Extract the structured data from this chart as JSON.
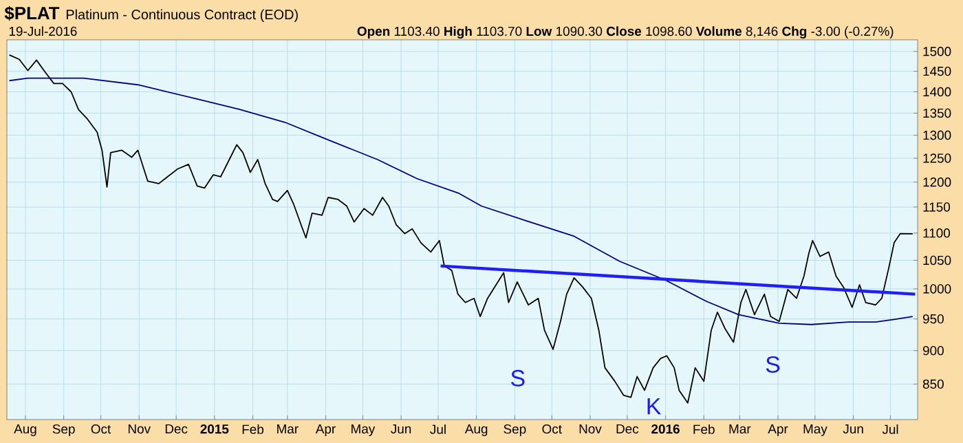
{
  "chart_data": {
    "type": "line",
    "title": "$PLAT",
    "subtitle": "Platinum - Continuous Contract (EOD)",
    "annotations": [
      "19-Jul-2016",
      "**Open** 1103.40 **High** 1103.70 **Low** 1090.30 **Close** 1098.60 **Volume** 8,146 **Chg** -3.00 (-0.27%)",
      "S",
      "K",
      "S"
    ],
    "series": [
      {
        "color": "#000000",
        "x": [
          "2014-07-19",
          "2014-07-27",
          "2014-08-03",
          "2014-08-10",
          "2014-08-16",
          "2014-08-24",
          "2014-08-31",
          "2014-09-07",
          "2014-09-13",
          "2014-09-20",
          "2014-09-28",
          "2014-10-02",
          "2014-10-06",
          "2014-10-09",
          "2014-10-18",
          "2014-10-26",
          "2014-10-31",
          "2014-11-08",
          "2014-11-17",
          "2014-11-22",
          "2014-12-02",
          "2014-12-11",
          "2014-12-18",
          "2014-12-24",
          "2014-12-31",
          "2015-01-06",
          "2015-01-13",
          "2015-01-19",
          "2015-01-24",
          "2015-01-30",
          "2015-02-05",
          "2015-02-11",
          "2015-02-17",
          "2015-02-21",
          "2015-03-01",
          "2015-03-06",
          "2015-03-12",
          "2015-03-16",
          "2015-03-21",
          "2015-03-29",
          "2015-04-03",
          "2015-04-11",
          "2015-04-18",
          "2015-04-24",
          "2015-05-02",
          "2015-05-09",
          "2015-05-17",
          "2015-05-22",
          "2015-05-28",
          "2015-06-04",
          "2015-06-10",
          "2015-06-17",
          "2015-06-25",
          "2015-07-02",
          "2015-07-06",
          "2015-07-12",
          "2015-07-17",
          "2015-07-23",
          "2015-07-30",
          "2015-08-04",
          "2015-08-10",
          "2015-08-23",
          "2015-08-27",
          "2015-09-03",
          "2015-09-12",
          "2015-09-20",
          "2015-09-25",
          "2015-10-02",
          "2015-10-08",
          "2015-10-13",
          "2015-10-19",
          "2015-10-26",
          "2015-11-02",
          "2015-11-08",
          "2015-11-13",
          "2015-11-21",
          "2015-11-28",
          "2015-12-04",
          "2015-12-09",
          "2015-12-15",
          "2015-12-22",
          "2015-12-28",
          "2016-01-02",
          "2016-01-08",
          "2016-01-12",
          "2016-01-19",
          "2016-01-25",
          "2016-02-01",
          "2016-02-07",
          "2016-02-12",
          "2016-02-18",
          "2016-02-25",
          "2016-03-02",
          "2016-03-06",
          "2016-03-13",
          "2016-03-21",
          "2016-03-26",
          "2016-04-02",
          "2016-04-09",
          "2016-04-16",
          "2016-04-22",
          "2016-04-26",
          "2016-04-29",
          "2016-05-05",
          "2016-05-12",
          "2016-05-18",
          "2016-05-24",
          "2016-05-31",
          "2016-06-06",
          "2016-06-11",
          "2016-06-19",
          "2016-06-24",
          "2016-06-30",
          "2016-07-04",
          "2016-07-09",
          "2016-07-19"
        ],
        "values": [
          1491,
          1480,
          1452,
          1478,
          1452,
          1420,
          1420,
          1400,
          1358,
          1337,
          1307,
          1267,
          1190,
          1262,
          1267,
          1252,
          1267,
          1202,
          1197,
          1207,
          1227,
          1237,
          1192,
          1188,
          1215,
          1211,
          1247,
          1279,
          1262,
          1220,
          1247,
          1197,
          1165,
          1161,
          1183,
          1156,
          1116,
          1091,
          1138,
          1134,
          1169,
          1165,
          1152,
          1121,
          1147,
          1134,
          1169,
          1152,
          1116,
          1099,
          1108,
          1082,
          1065,
          1086,
          1040,
          1032,
          991,
          977,
          984,
          954,
          984,
          1028,
          977,
          1012,
          973,
          984,
          932,
          902,
          946,
          991,
          1019,
          1003,
          984,
          932,
          874,
          854,
          834,
          831,
          861,
          841,
          874,
          888,
          892,
          874,
          841,
          823,
          874,
          854,
          932,
          961,
          935,
          913,
          977,
          999,
          957,
          991,
          954,
          946,
          999,
          984,
          1022,
          1063,
          1086,
          1057,
          1065,
          1022,
          1003,
          969,
          1007,
          977,
          973,
          984,
          1040,
          1082,
          1099,
          1098.6
        ]
      },
      {
        "color": "#000080",
        "x": [
          "2014-07-19",
          "2014-08-03",
          "2014-09-17",
          "2014-10-31",
          "2014-12-15",
          "2015-01-21",
          "2015-02-27",
          "2015-04-01",
          "2015-05-13",
          "2015-06-14",
          "2015-07-18",
          "2015-08-05",
          "2015-09-08",
          "2015-10-19",
          "2015-11-25",
          "2016-01-01",
          "2016-02-03",
          "2016-02-29",
          "2016-04-02",
          "2016-04-28",
          "2016-05-28",
          "2016-06-19",
          "2016-07-03",
          "2016-07-19"
        ],
        "values": [
          1427,
          1433,
          1433,
          1417,
          1385,
          1359,
          1329,
          1292,
          1247,
          1207,
          1177,
          1152,
          1125,
          1094,
          1048,
          1015,
          979,
          957,
          943,
          941,
          945,
          945,
          949,
          954
        ]
      },
      {
        "color": "#1e1eff",
        "x": [
          "2015-07-03",
          "2016-07-21"
        ],
        "values": [
          1040,
          991
        ]
      }
    ],
    "xlim": [
      "2014-07-17",
      "2016-07-23"
    ],
    "xticks": [
      {
        "value": "2014-08-01",
        "label": "Aug"
      },
      {
        "value": "2014-09-01",
        "label": "Sep"
      },
      {
        "value": "2014-10-01",
        "label": "Oct"
      },
      {
        "value": "2014-11-01",
        "label": "Nov"
      },
      {
        "value": "2014-12-01",
        "label": "Dec"
      },
      {
        "value": "2015-01-01",
        "label": "2015"
      },
      {
        "value": "2015-02-01",
        "label": "Feb"
      },
      {
        "value": "2015-03-01",
        "label": "Mar"
      },
      {
        "value": "2015-04-01",
        "label": "Apr"
      },
      {
        "value": "2015-05-01",
        "label": "May"
      },
      {
        "value": "2015-06-01",
        "label": "Jun"
      },
      {
        "value": "2015-07-01",
        "label": "Jul"
      },
      {
        "value": "2015-08-01",
        "label": "Aug"
      },
      {
        "value": "2015-09-01",
        "label": "Sep"
      },
      {
        "value": "2015-10-01",
        "label": "Oct"
      },
      {
        "value": "2015-11-01",
        "label": "Nov"
      },
      {
        "value": "2015-12-01",
        "label": "Dec"
      },
      {
        "value": "2016-01-01",
        "label": "2016"
      },
      {
        "value": "2016-02-01",
        "label": "Feb"
      },
      {
        "value": "2016-03-01",
        "label": "Mar"
      },
      {
        "value": "2016-04-01",
        "label": "Apr"
      },
      {
        "value": "2016-05-01",
        "label": "May"
      },
      {
        "value": "2016-06-01",
        "label": "Jun"
      },
      {
        "value": "2016-07-01",
        "label": "Jul"
      }
    ],
    "ylim": [
      800,
      1530
    ],
    "yticks": [
      850,
      900,
      950,
      1000,
      1050,
      1100,
      1150,
      1200,
      1250,
      1300,
      1350,
      1400,
      1450,
      1500
    ],
    "log": "y",
    "grid": true,
    "marker": "none",
    "line_style": "solid"
  }
}
